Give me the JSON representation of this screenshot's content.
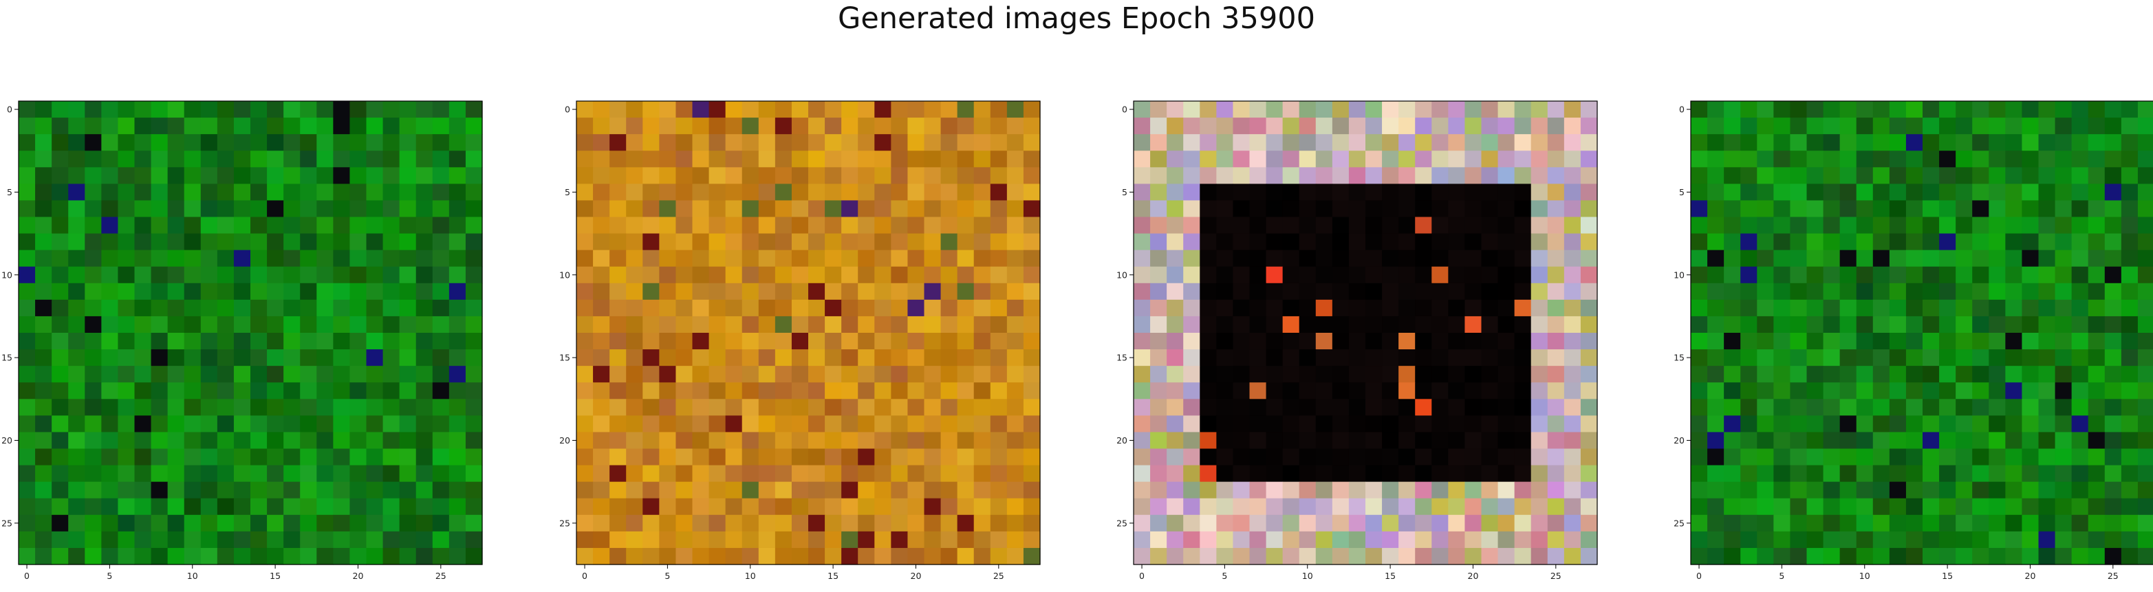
{
  "figure": {
    "title": "Generated images Epoch 35900"
  },
  "panels": [
    {
      "name": "image-1",
      "palette": "green",
      "pixel_grid": "28x28",
      "x_ticks": [
        "0",
        "5",
        "10",
        "15",
        "20",
        "25"
      ],
      "y_ticks": [
        "0",
        "5",
        "10",
        "15",
        "20",
        "25"
      ]
    },
    {
      "name": "image-2",
      "palette": "amber",
      "pixel_grid": "28x28",
      "x_ticks": [
        "0",
        "5",
        "10",
        "15",
        "20",
        "25"
      ],
      "y_ticks": [
        "0",
        "5",
        "10",
        "15",
        "20",
        "25"
      ]
    },
    {
      "name": "image-3",
      "palette": "frame-dark-center",
      "pixel_grid": "28x28",
      "x_ticks": [
        "0",
        "5",
        "10",
        "15",
        "20",
        "25"
      ],
      "y_ticks": [
        "0",
        "5",
        "10",
        "15",
        "20",
        "25"
      ]
    },
    {
      "name": "image-4",
      "palette": "green",
      "pixel_grid": "28x28",
      "x_ticks": [
        "0",
        "5",
        "10",
        "15",
        "20",
        "25"
      ],
      "y_ticks": [
        "0",
        "5",
        "10",
        "15",
        "20",
        "25"
      ]
    }
  ]
}
